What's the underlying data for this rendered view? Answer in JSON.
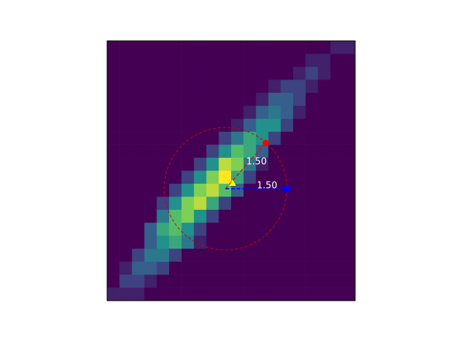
{
  "chart_data": {
    "type": "heatmap",
    "colormap": "viridis",
    "z": [
      [
        0,
        0,
        0,
        0,
        0,
        0,
        0,
        0,
        0,
        0,
        0,
        0,
        0,
        0,
        0,
        0,
        0,
        0,
        1,
        1
      ],
      [
        0,
        0,
        0,
        0,
        0,
        0,
        0,
        0,
        0,
        0,
        0,
        0,
        0,
        0,
        0,
        0,
        1,
        1,
        0,
        0
      ],
      [
        0,
        0,
        0,
        0,
        0,
        0,
        0,
        0,
        0,
        0,
        0,
        0,
        0,
        0,
        0,
        1,
        2,
        1,
        0,
        0
      ],
      [
        0,
        0,
        0,
        0,
        0,
        0,
        0,
        0,
        0,
        0,
        0,
        0,
        0,
        1,
        2,
        2,
        1,
        0,
        0,
        0
      ],
      [
        0,
        0,
        0,
        0,
        0,
        0,
        0,
        0,
        0,
        0,
        0,
        0,
        1,
        3,
        3,
        2,
        0,
        0,
        0,
        0
      ],
      [
        0,
        0,
        0,
        0,
        0,
        0,
        0,
        0,
        0,
        0,
        0,
        1,
        3,
        4,
        3,
        1,
        0,
        0,
        0,
        0
      ],
      [
        0,
        0,
        0,
        0,
        0,
        0,
        0,
        0,
        0,
        0,
        1,
        3,
        5,
        5,
        2,
        0,
        0,
        0,
        0,
        0
      ],
      [
        0,
        0,
        0,
        0,
        0,
        0,
        0,
        0,
        0,
        2,
        4,
        6,
        5,
        2,
        0,
        0,
        0,
        0,
        0,
        0
      ],
      [
        0,
        0,
        0,
        0,
        0,
        0,
        0,
        0,
        2,
        5,
        7,
        6,
        3,
        0,
        0,
        0,
        0,
        0,
        0,
        0
      ],
      [
        0,
        0,
        0,
        0,
        0,
        0,
        0,
        2,
        5,
        9,
        8,
        4,
        1,
        0,
        0,
        0,
        0,
        0,
        0,
        0
      ],
      [
        0,
        0,
        0,
        0,
        0,
        0,
        2,
        5,
        8,
        10,
        6,
        2,
        0,
        0,
        0,
        0,
        0,
        0,
        0,
        0
      ],
      [
        0,
        0,
        0,
        0,
        0,
        2,
        5,
        8,
        9,
        7,
        3,
        0,
        0,
        0,
        0,
        0,
        0,
        0,
        0,
        0
      ],
      [
        0,
        0,
        0,
        0,
        2,
        5,
        8,
        9,
        6,
        2,
        0,
        0,
        0,
        0,
        0,
        0,
        0,
        0,
        0,
        0
      ],
      [
        0,
        0,
        0,
        0,
        4,
        7,
        8,
        5,
        2,
        0,
        0,
        0,
        0,
        0,
        0,
        0,
        0,
        0,
        0,
        0
      ],
      [
        0,
        0,
        0,
        3,
        6,
        7,
        5,
        2,
        0,
        0,
        0,
        0,
        0,
        0,
        0,
        0,
        0,
        0,
        0,
        0
      ],
      [
        0,
        0,
        0,
        3,
        5,
        6,
        4,
        1,
        0,
        0,
        0,
        0,
        0,
        0,
        0,
        0,
        0,
        0,
        0,
        0
      ],
      [
        0,
        0,
        2,
        4,
        4,
        2,
        0,
        0,
        0,
        0,
        0,
        0,
        0,
        0,
        0,
        0,
        0,
        0,
        0,
        0
      ],
      [
        0,
        1,
        3,
        3,
        2,
        0,
        0,
        0,
        0,
        0,
        0,
        0,
        0,
        0,
        0,
        0,
        0,
        0,
        0,
        0
      ],
      [
        0,
        2,
        2,
        1,
        0,
        0,
        0,
        0,
        0,
        0,
        0,
        0,
        0,
        0,
        0,
        0,
        0,
        0,
        0,
        0
      ],
      [
        1,
        1,
        1,
        0,
        0,
        0,
        0,
        0,
        0,
        0,
        0,
        0,
        0,
        0,
        0,
        0,
        0,
        0,
        0,
        0
      ]
    ],
    "annotations": [
      {
        "text": "1.50",
        "color": "#ff0000"
      },
      {
        "text": "1.50",
        "color": "#0000ff"
      }
    ]
  }
}
